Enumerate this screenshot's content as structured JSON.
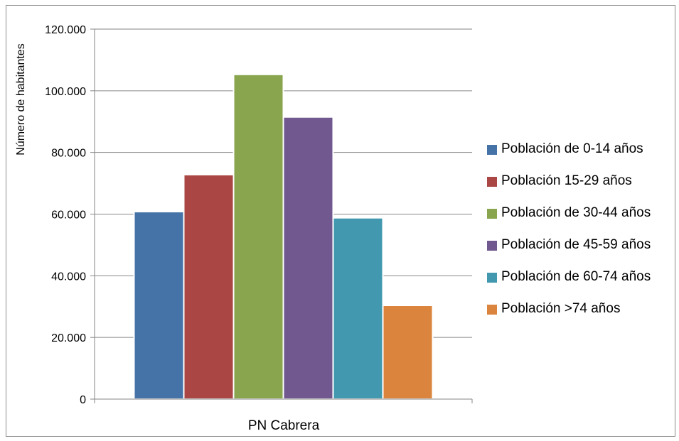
{
  "chart_data": {
    "type": "bar",
    "categories": [
      "PN Cabrera"
    ],
    "series": [
      {
        "name": "Población de 0-14 años",
        "values": [
          60800
        ],
        "color": "#4572A7"
      },
      {
        "name": "Población 15-29 años",
        "values": [
          72800
        ],
        "color": "#AA4643"
      },
      {
        "name": "Población de 30-44 años",
        "values": [
          105300
        ],
        "color": "#89A54E"
      },
      {
        "name": "Población de 45-59 años",
        "values": [
          91500
        ],
        "color": "#71588F"
      },
      {
        "name": "Población de 60-74 años",
        "values": [
          58800
        ],
        "color": "#4198AF"
      },
      {
        "name": "Población >74 años",
        "values": [
          30400
        ],
        "color": "#DB843D"
      }
    ],
    "ylabel": "Número de habitantes",
    "xlabel": "",
    "ylim": [
      0,
      120000
    ],
    "yticks": [
      0,
      20000,
      40000,
      60000,
      80000,
      100000,
      120000
    ],
    "ytick_labels": [
      "0",
      "20.000",
      "40.000",
      "60.000",
      "80.000",
      "100.000",
      "120.000"
    ],
    "grid": true,
    "legend_position": "right"
  }
}
